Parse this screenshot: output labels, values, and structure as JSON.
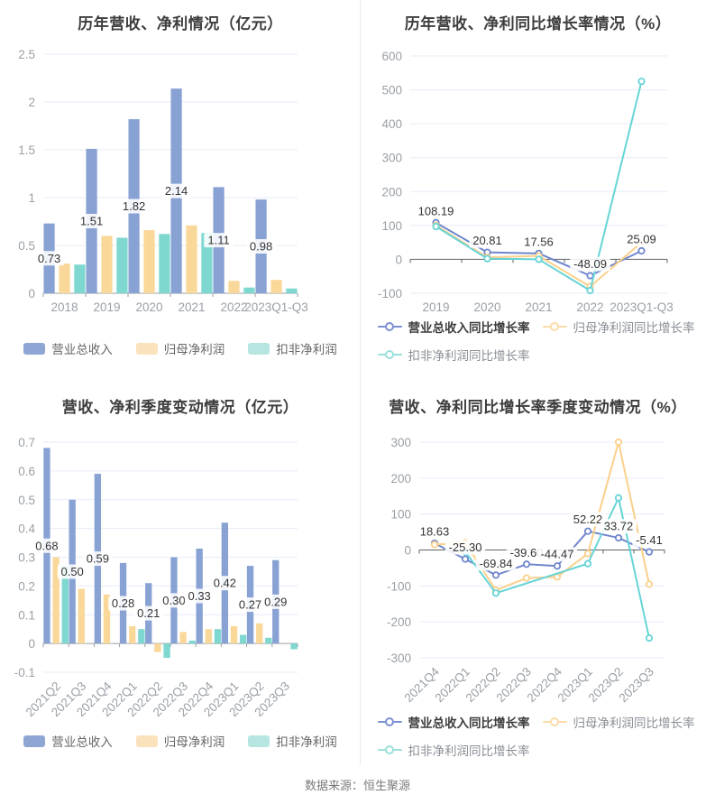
{
  "page": {
    "footer": "数据来源：恒生聚源",
    "background": "#ffffff",
    "divider_color": "#ececec"
  },
  "chart_data": [
    {
      "id": "annual-revenue-profit",
      "type": "bar",
      "title": "历年营收、净利情况（亿元）",
      "categories": [
        "2018",
        "2019",
        "2020",
        "2021",
        "2022",
        "2023Q1-Q3"
      ],
      "series": [
        {
          "name": "营业总收入",
          "color": "#89A2D4",
          "legend_color": "#8FA6D4",
          "labels": true,
          "values": [
            0.73,
            1.51,
            1.82,
            2.14,
            1.11,
            0.98
          ]
        },
        {
          "name": "归母净利润",
          "color": "#FAD89A",
          "legend_color": "#FAE3BC",
          "values": [
            0.31,
            0.6,
            0.66,
            0.71,
            0.13,
            0.14
          ]
        },
        {
          "name": "扣非净利润",
          "color": "#7ED8D0",
          "legend_color": "#B7E6E1",
          "values": [
            0.3,
            0.58,
            0.62,
            0.63,
            0.06,
            0.05
          ]
        }
      ],
      "ylim": [
        0,
        2.5
      ],
      "ystep": 0.5,
      "grid": true,
      "legend_position": "bottom",
      "rotate_labels": false
    },
    {
      "id": "annual-growth-rate",
      "type": "line",
      "title": "历年营收、净利同比增长率情况（%）",
      "categories": [
        "2019",
        "2020",
        "2021",
        "2022",
        "2023Q1-Q3"
      ],
      "series": [
        {
          "name": "营业总收入同比增长率",
          "color": "#7086CC",
          "legend_color": "#7C90D2",
          "labels": true,
          "values": [
            108.19,
            20.81,
            17.56,
            -48.09,
            25.09
          ]
        },
        {
          "name": "归母净利润同比增长率",
          "color": "#FBD08A",
          "legend_color": "#FBDCA8",
          "values": [
            100,
            6,
            10,
            -80,
            50
          ]
        },
        {
          "name": "扣非净利润同比增长率",
          "color": "#66D4D6",
          "legend_color": "#9ADFDB",
          "values": [
            97,
            2,
            0,
            -92,
            525
          ]
        }
      ],
      "ylim": [
        -100,
        600
      ],
      "ystep": 100,
      "grid": true,
      "legend_position": "bottom",
      "rotate_labels": false
    },
    {
      "id": "quarterly-revenue-profit",
      "type": "bar",
      "title": "营收、净利季度变动情况（亿元）",
      "categories": [
        "2021Q2",
        "2021Q3",
        "2021Q4",
        "2022Q1",
        "2022Q2",
        "2022Q3",
        "2022Q4",
        "2023Q1",
        "2023Q2",
        "2023Q3"
      ],
      "series": [
        {
          "name": "营业总收入",
          "color": "#89A2D4",
          "legend_color": "#8FA6D4",
          "labels": true,
          "values": [
            0.68,
            0.5,
            0.59,
            0.28,
            0.21,
            0.3,
            0.33,
            0.42,
            0.27,
            0.29
          ]
        },
        {
          "name": "归母净利润",
          "color": "#FAD89A",
          "legend_color": "#FAE3BC",
          "values": [
            0.3,
            0.19,
            0.17,
            0.06,
            -0.03,
            0.04,
            0.05,
            0.06,
            0.07,
            0
          ]
        },
        {
          "name": "扣非净利润",
          "color": "#7ED8D0",
          "legend_color": "#B7E6E1",
          "values": [
            0.27,
            0,
            0,
            0.05,
            -0.05,
            0.01,
            0.05,
            0.03,
            0.02,
            -0.02
          ]
        }
      ],
      "ylim": [
        -0.1,
        0.7
      ],
      "ystep": 0.1,
      "grid": true,
      "legend_position": "bottom",
      "rotate_labels": true
    },
    {
      "id": "quarterly-growth-rate",
      "type": "line",
      "title": "营收、净利同比增长率季度变动情况（%）",
      "categories": [
        "2021Q4",
        "2022Q1",
        "2022Q2",
        "2022Q3",
        "2022Q4",
        "2023Q1",
        "2023Q2",
        "2023Q3"
      ],
      "series": [
        {
          "name": "营业总收入同比增长率",
          "color": "#7086CC",
          "legend_color": "#7C90D2",
          "labels": true,
          "values": [
            18.63,
            -25.3,
            -69.84,
            -39.6,
            -44.47,
            52.22,
            33.72,
            -5.41
          ]
        },
        {
          "name": "归母净利润同比增长率",
          "color": "#FBD08A",
          "legend_color": "#FBDCA8",
          "values": [
            15,
            20,
            -112,
            -78,
            -75,
            -10,
            300,
            -95
          ]
        },
        {
          "name": "扣非净利润同比增长率",
          "color": "#66D4D6",
          "legend_color": "#9ADFDB",
          "values": [
            null,
            -5,
            -120,
            null,
            null,
            -38,
            145,
            -245
          ]
        }
      ],
      "ylim": [
        -300,
        300
      ],
      "ystep": 100,
      "grid": true,
      "legend_position": "bottom",
      "rotate_labels": true
    }
  ]
}
